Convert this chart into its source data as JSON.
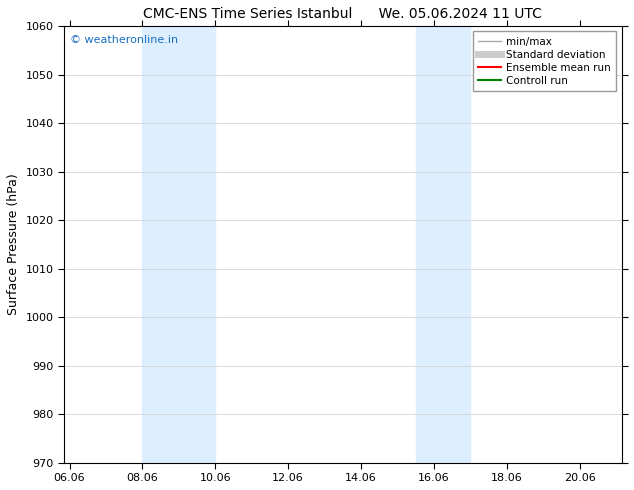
{
  "title_left": "CMC-ENS Time Series Istanbul",
  "title_right": "We. 05.06.2024 11 UTC",
  "ylabel": "Surface Pressure (hPa)",
  "ylim": [
    970,
    1060
  ],
  "yticks": [
    970,
    980,
    990,
    1000,
    1010,
    1020,
    1030,
    1040,
    1050,
    1060
  ],
  "xlim_start": 5.85,
  "xlim_end": 21.15,
  "xtick_labels": [
    "06.06",
    "08.06",
    "10.06",
    "12.06",
    "14.06",
    "16.06",
    "18.06",
    "20.06"
  ],
  "xtick_positions": [
    6.0,
    8.0,
    10.0,
    12.0,
    14.0,
    16.0,
    18.0,
    20.0
  ],
  "shaded_bands": [
    {
      "x_start": 8.0,
      "x_end": 10.0
    },
    {
      "x_start": 15.5,
      "x_end": 17.0
    }
  ],
  "shaded_color": "#ddeeff",
  "watermark_text": "© weatheronline.in",
  "watermark_color": "#1a6ec0",
  "legend_items": [
    {
      "label": "min/max",
      "color": "#aaaaaa",
      "lw": 1.0
    },
    {
      "label": "Standard deviation",
      "color": "#cccccc",
      "lw": 5
    },
    {
      "label": "Ensemble mean run",
      "color": "#ff0000",
      "lw": 1.5
    },
    {
      "label": "Controll run",
      "color": "#008000",
      "lw": 1.5
    }
  ],
  "bg_color": "#ffffff",
  "spine_color": "#000000",
  "grid_color": "#cccccc",
  "title_fontsize": 10,
  "ylabel_fontsize": 9,
  "tick_fontsize": 8,
  "legend_fontsize": 7.5,
  "watermark_fontsize": 8
}
